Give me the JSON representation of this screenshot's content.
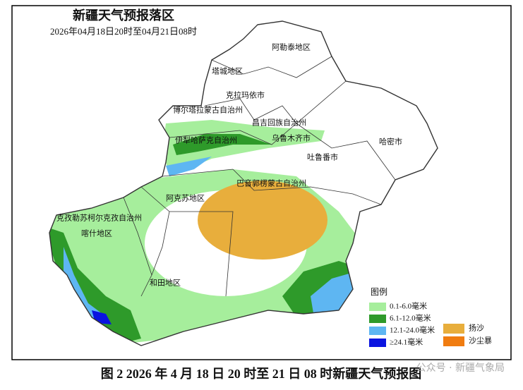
{
  "header": {
    "title": "新疆天气预报落区",
    "subtitle": "2026年04月18日20时至04月21日08时"
  },
  "regions": [
    {
      "label": "阿勒泰地区"
    },
    {
      "label": "塔城地区"
    },
    {
      "label": "克拉玛依市"
    },
    {
      "label": "博尔塔拉蒙古自治州"
    },
    {
      "label": "昌吉回族自治州"
    },
    {
      "label": "伊犁哈萨克自治州"
    },
    {
      "label": "乌鲁木齐市"
    },
    {
      "label": "吐鲁番市"
    },
    {
      "label": "哈密市"
    },
    {
      "label": "巴音郭楞蒙古自治州"
    },
    {
      "label": "阿克苏地区"
    },
    {
      "label": "克孜勒苏柯尔克孜自治州"
    },
    {
      "label": "喀什地区"
    },
    {
      "label": "和田地区"
    }
  ],
  "legend": {
    "title": "图例",
    "items": [
      {
        "label": "0.1-6.0毫米",
        "color": "#a6ee9c"
      },
      {
        "label": "6.1-12.0毫米",
        "color": "#2e9a2a"
      },
      {
        "label": "12.1-24.0毫米",
        "color": "#5eb6f2"
      },
      {
        "label": "≥24.1毫米",
        "color": "#0a14e0"
      },
      {
        "label": "扬沙",
        "color": "#e8ae3c"
      },
      {
        "label": "沙尘暴",
        "color": "#f07c10"
      }
    ]
  },
  "caption": "图 2 2026 年 4 月 18 日 20 时至 21 日 08 时新疆天气预报图",
  "watermark": "公众号 · 新疆气象局"
}
